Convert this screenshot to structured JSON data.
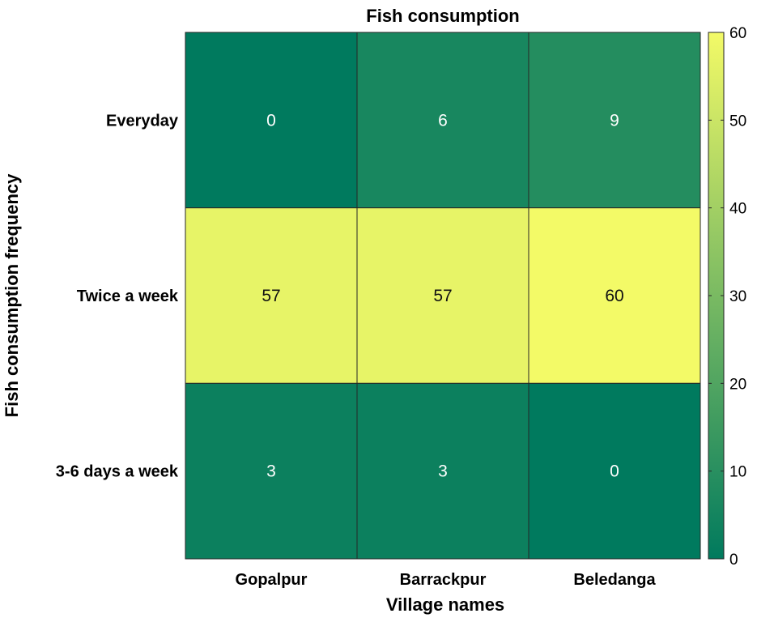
{
  "chart_data": {
    "type": "heatmap",
    "title": "Fish consumption",
    "xlabel": "Village names",
    "ylabel": "Fish consumption frequency",
    "x_categories": [
      "Gopalpur",
      "Barrackpur",
      "Beledanga"
    ],
    "y_categories": [
      "Everyday",
      "Twice a week",
      "3-6 days a week"
    ],
    "values": [
      [
        0,
        6,
        9
      ],
      [
        57,
        57,
        60
      ],
      [
        3,
        3,
        0
      ]
    ],
    "colorbar": {
      "range": [
        0,
        60
      ],
      "ticks": [
        "0",
        "10",
        "20",
        "30",
        "40",
        "50",
        "60"
      ],
      "low_color": "#007A5E",
      "high_color": "#F3FA67"
    }
  }
}
